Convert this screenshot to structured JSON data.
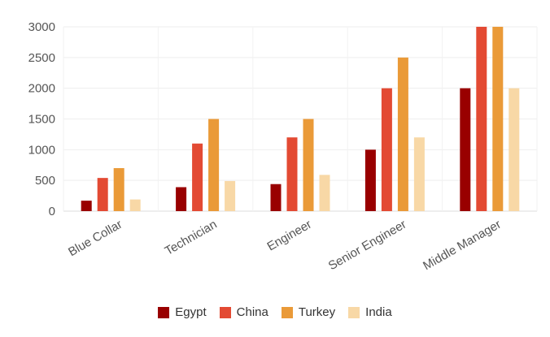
{
  "chart_data": {
    "type": "bar",
    "categories": [
      "Blue Collar",
      "Technician",
      "Engineer",
      "Senior Engineer",
      "Middle Manager"
    ],
    "series": [
      {
        "name": "Egypt",
        "color": "#990000",
        "values": [
          170,
          390,
          440,
          1000,
          2000
        ]
      },
      {
        "name": "China",
        "color": "#e34a33",
        "values": [
          540,
          1100,
          1200,
          2000,
          3000
        ]
      },
      {
        "name": "Turkey",
        "color": "#ea9a38",
        "values": [
          700,
          1500,
          1500,
          2500,
          3000
        ]
      },
      {
        "name": "India",
        "color": "#f8d8a6",
        "values": [
          190,
          490,
          590,
          1200,
          2000
        ]
      }
    ],
    "yticks": [
      "0",
      "500",
      "1000",
      "1500",
      "2000",
      "2500",
      "3000"
    ],
    "ylim": [
      0,
      3000
    ],
    "grid": true,
    "legend_position": "bottom-center"
  }
}
